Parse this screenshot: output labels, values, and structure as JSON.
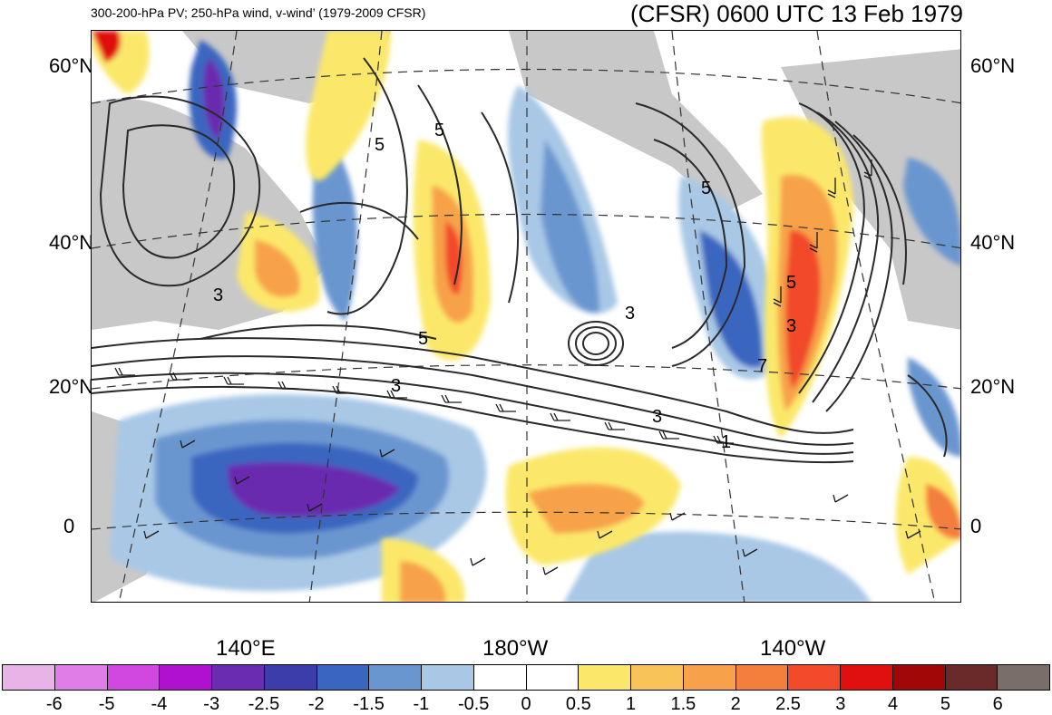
{
  "header": {
    "subtitle": "300-200-hPa PV; 250-hPa wind, v-wind’ (1979-2009 CFSR)",
    "title": "(CFSR) 0600 UTC 13 Feb 1979"
  },
  "axes": {
    "lat_labels_left": [
      "60°N",
      "40°N",
      "20°N",
      "0"
    ],
    "lat_labels_right": [
      "60°N",
      "40°N",
      "20°N",
      "0"
    ],
    "lon_labels": [
      "140°E",
      "180°W",
      "140°W"
    ]
  },
  "contour_labels": [
    "5",
    "5",
    "5",
    "3",
    "5",
    "3",
    "3",
    "5",
    "3",
    "7",
    "3",
    "1"
  ],
  "colorbar": {
    "colors": [
      "#e8b4e8",
      "#e07ee8",
      "#d048e0",
      "#b010d0",
      "#6a2cb0",
      "#3c3caa",
      "#3a66c0",
      "#6a96d0",
      "#a8c8e6",
      "#ffffff",
      "#ffffff",
      "#fbe86a",
      "#f8c45a",
      "#f7a24a",
      "#f47e3c",
      "#f24a2a",
      "#e01010",
      "#a00808",
      "#6a2a2a",
      "#7a6e6a"
    ],
    "labels": [
      "-6",
      "-5",
      "-4",
      "-3",
      "-2.5",
      "-2",
      "-1.5",
      "-1",
      "-0.5",
      "0",
      "0.5",
      "1",
      "1.5",
      "2",
      "2.5",
      "3",
      "4",
      "5",
      "6"
    ]
  },
  "palette": {
    "land": "#c8c8c8",
    "contour": "#2a2a2a",
    "grid": "#333333"
  }
}
